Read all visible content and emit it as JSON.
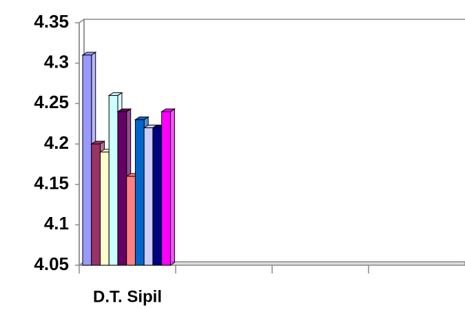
{
  "chart_data": {
    "type": "bar",
    "categories": [
      "D.T. Sipil",
      null,
      null,
      null
    ],
    "series": [
      {
        "color": "#9999ff",
        "values": [
          4.31,
          null,
          null,
          null
        ]
      },
      {
        "color": "#993366",
        "values": [
          4.2,
          null,
          null,
          null
        ]
      },
      {
        "color": "#ffffcc",
        "values": [
          4.19,
          null,
          null,
          null
        ]
      },
      {
        "color": "#ccffff",
        "values": [
          4.26,
          null,
          null,
          null
        ]
      },
      {
        "color": "#660066",
        "values": [
          4.24,
          null,
          null,
          null
        ]
      },
      {
        "color": "#ff8080",
        "values": [
          4.16,
          null,
          null,
          null
        ]
      },
      {
        "color": "#0066cc",
        "values": [
          4.23,
          null,
          null,
          null
        ]
      },
      {
        "color": "#ccccff",
        "values": [
          4.22,
          null,
          null,
          null
        ]
      },
      {
        "color": "#000080",
        "values": [
          4.22,
          null,
          null,
          null
        ]
      },
      {
        "color": "#ff00ff",
        "values": [
          4.24,
          null,
          null,
          null
        ]
      }
    ],
    "ylim": [
      4.05,
      4.35
    ],
    "yticks": [
      4.05,
      4.1,
      4.15,
      4.2,
      4.25,
      4.3,
      4.35
    ],
    "grid": false
  }
}
